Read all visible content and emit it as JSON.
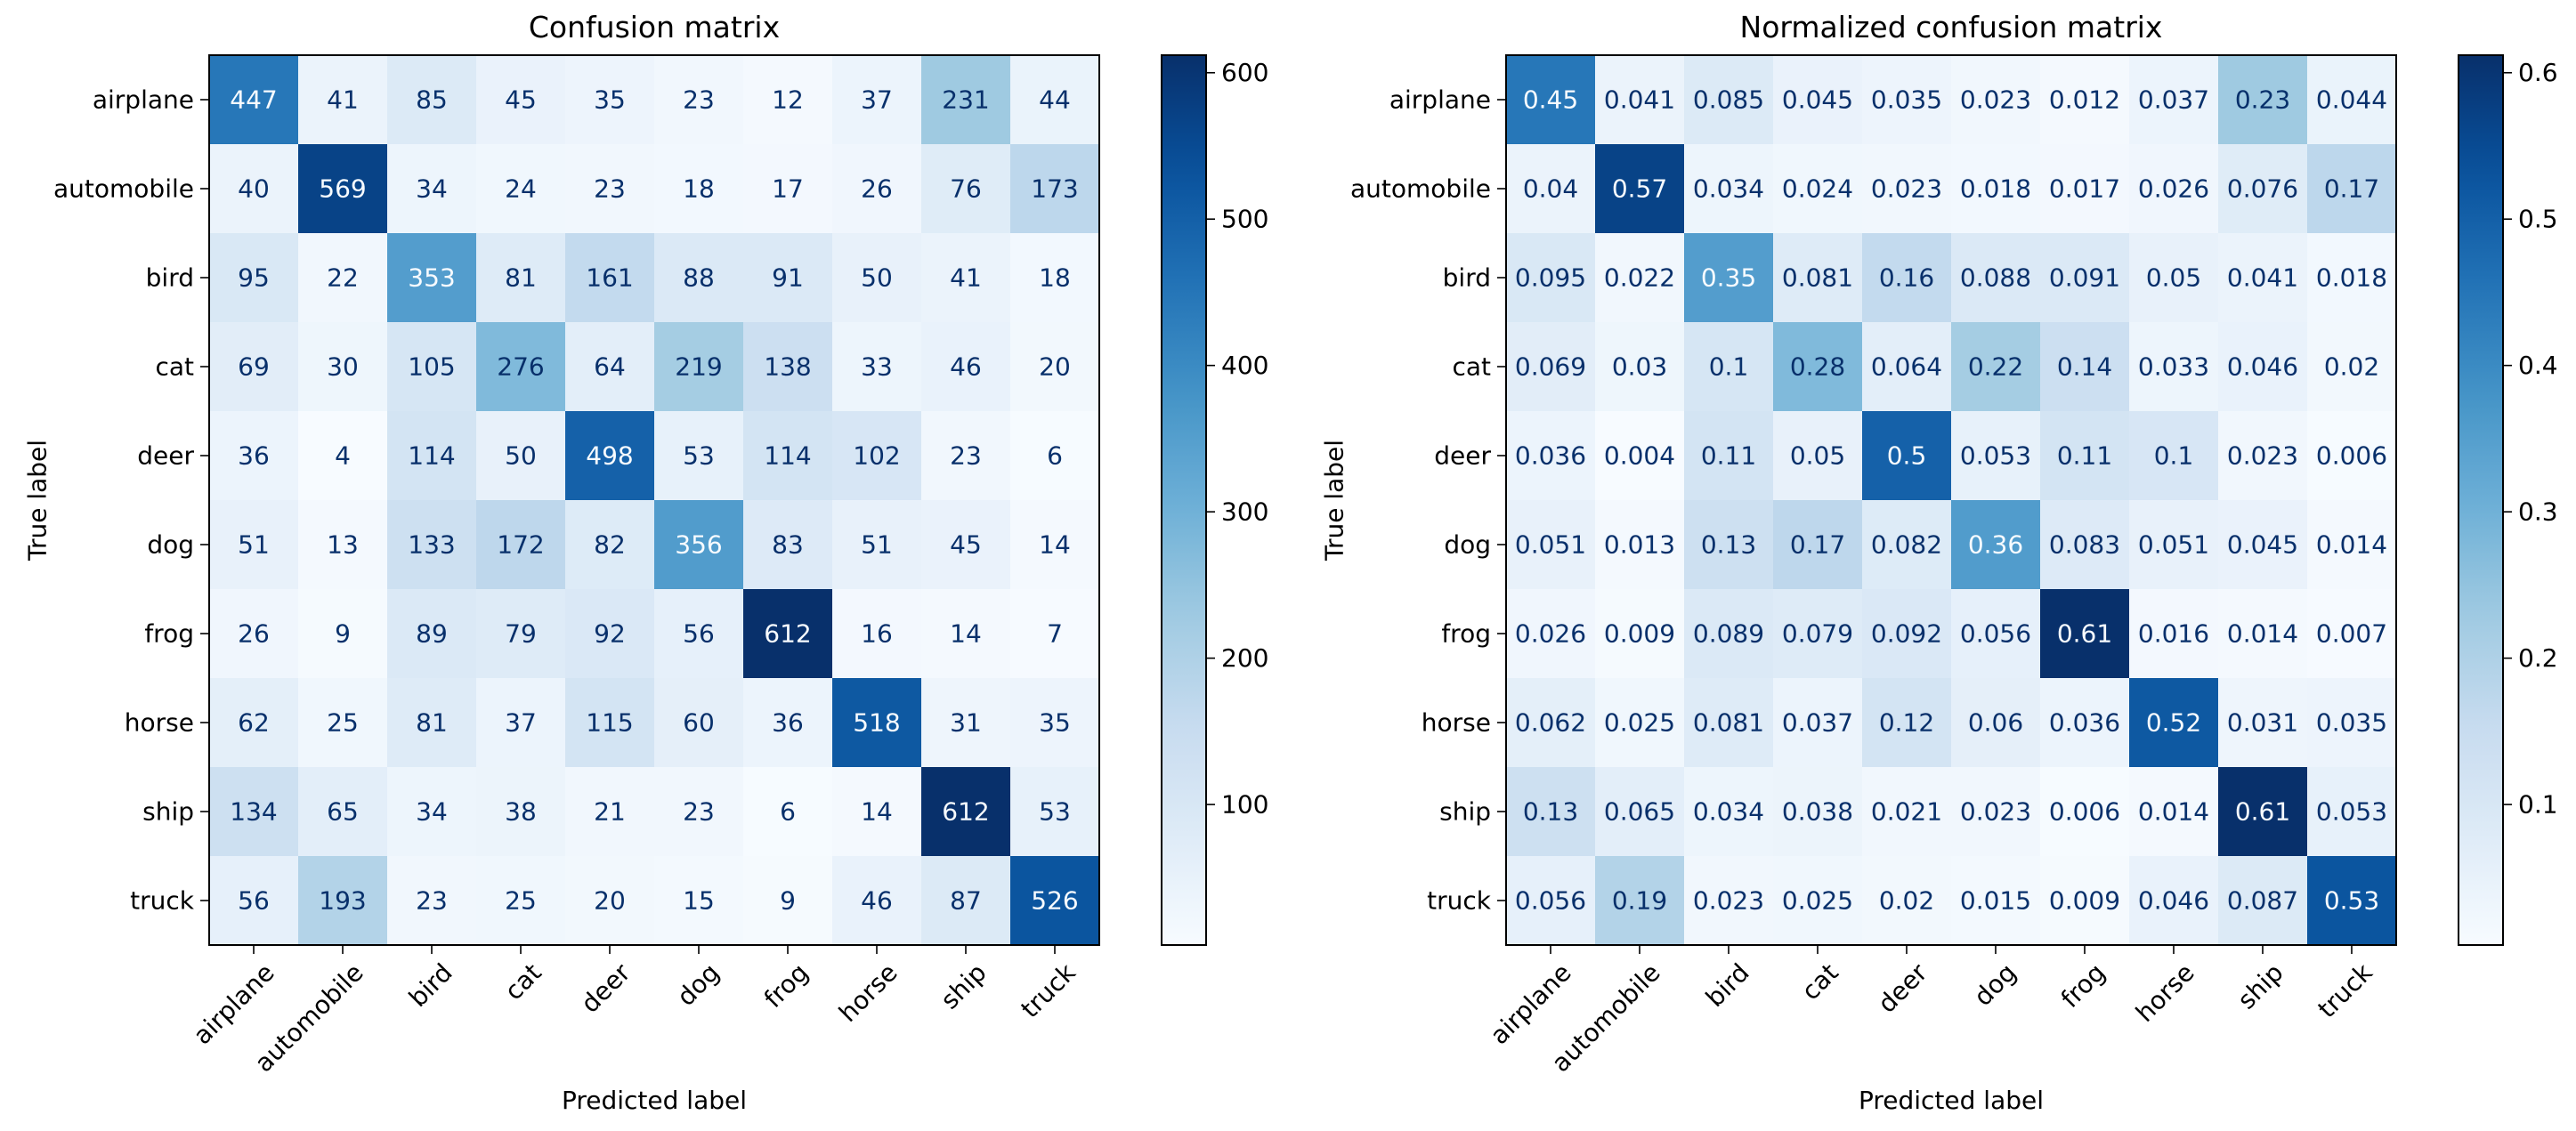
{
  "chart_data": [
    {
      "type": "heatmap",
      "title": "Confusion matrix",
      "xlabel": "Predicted label",
      "ylabel": "True label",
      "x_categories": [
        "airplane",
        "automobile",
        "bird",
        "cat",
        "deer",
        "dog",
        "frog",
        "horse",
        "ship",
        "truck"
      ],
      "y_categories": [
        "airplane",
        "automobile",
        "bird",
        "cat",
        "deer",
        "dog",
        "frog",
        "horse",
        "ship",
        "truck"
      ],
      "values": [
        [
          447,
          41,
          85,
          45,
          35,
          23,
          12,
          37,
          231,
          44
        ],
        [
          40,
          569,
          34,
          24,
          23,
          18,
          17,
          26,
          76,
          173
        ],
        [
          95,
          22,
          353,
          81,
          161,
          88,
          91,
          50,
          41,
          18
        ],
        [
          69,
          30,
          105,
          276,
          64,
          219,
          138,
          33,
          46,
          20
        ],
        [
          36,
          4,
          114,
          50,
          498,
          53,
          114,
          102,
          23,
          6
        ],
        [
          51,
          13,
          133,
          172,
          82,
          356,
          83,
          51,
          45,
          14
        ],
        [
          26,
          9,
          89,
          79,
          92,
          56,
          612,
          16,
          14,
          7
        ],
        [
          62,
          25,
          81,
          37,
          115,
          60,
          36,
          518,
          31,
          35
        ],
        [
          134,
          65,
          34,
          38,
          21,
          23,
          6,
          14,
          612,
          53
        ],
        [
          56,
          193,
          23,
          25,
          20,
          15,
          9,
          46,
          87,
          526
        ]
      ],
      "value_labels": [
        [
          "447",
          "41",
          "85",
          "45",
          "35",
          "23",
          "12",
          "37",
          "231",
          "44"
        ],
        [
          "40",
          "569",
          "34",
          "24",
          "23",
          "18",
          "17",
          "26",
          "76",
          "173"
        ],
        [
          "95",
          "22",
          "353",
          "81",
          "161",
          "88",
          "91",
          "50",
          "41",
          "18"
        ],
        [
          "69",
          "30",
          "105",
          "276",
          "64",
          "219",
          "138",
          "33",
          "46",
          "20"
        ],
        [
          "36",
          "4",
          "114",
          "50",
          "498",
          "53",
          "114",
          "102",
          "23",
          "6"
        ],
        [
          "51",
          "13",
          "133",
          "172",
          "82",
          "356",
          "83",
          "51",
          "45",
          "14"
        ],
        [
          "26",
          "9",
          "89",
          "79",
          "92",
          "56",
          "612",
          "16",
          "14",
          "7"
        ],
        [
          "62",
          "25",
          "81",
          "37",
          "115",
          "60",
          "36",
          "518",
          "31",
          "35"
        ],
        [
          "134",
          "65",
          "34",
          "38",
          "21",
          "23",
          "6",
          "14",
          "612",
          "53"
        ],
        [
          "56",
          "193",
          "23",
          "25",
          "20",
          "15",
          "9",
          "46",
          "87",
          "526"
        ]
      ],
      "colormap": "Blues",
      "color_range": [
        4,
        612
      ],
      "colorbar_ticks": [
        100,
        200,
        300,
        400,
        500,
        600
      ],
      "colorbar_tick_labels": [
        "100",
        "200",
        "300",
        "400",
        "500",
        "600"
      ]
    },
    {
      "type": "heatmap",
      "title": "Normalized confusion matrix",
      "xlabel": "Predicted label",
      "ylabel": "True label",
      "x_categories": [
        "airplane",
        "automobile",
        "bird",
        "cat",
        "deer",
        "dog",
        "frog",
        "horse",
        "ship",
        "truck"
      ],
      "y_categories": [
        "airplane",
        "automobile",
        "bird",
        "cat",
        "deer",
        "dog",
        "frog",
        "horse",
        "ship",
        "truck"
      ],
      "values": [
        [
          0.447,
          0.041,
          0.085,
          0.045,
          0.035,
          0.023,
          0.012,
          0.037,
          0.231,
          0.044
        ],
        [
          0.04,
          0.569,
          0.034,
          0.024,
          0.023,
          0.018,
          0.017,
          0.026,
          0.076,
          0.173
        ],
        [
          0.095,
          0.022,
          0.353,
          0.081,
          0.161,
          0.088,
          0.091,
          0.05,
          0.041,
          0.018
        ],
        [
          0.069,
          0.03,
          0.105,
          0.276,
          0.064,
          0.219,
          0.138,
          0.033,
          0.046,
          0.02
        ],
        [
          0.036,
          0.004,
          0.114,
          0.05,
          0.498,
          0.053,
          0.114,
          0.102,
          0.023,
          0.006
        ],
        [
          0.051,
          0.013,
          0.133,
          0.172,
          0.082,
          0.356,
          0.083,
          0.051,
          0.045,
          0.014
        ],
        [
          0.026,
          0.009,
          0.089,
          0.079,
          0.092,
          0.056,
          0.612,
          0.016,
          0.014,
          0.007
        ],
        [
          0.062,
          0.025,
          0.081,
          0.037,
          0.115,
          0.06,
          0.036,
          0.518,
          0.031,
          0.035
        ],
        [
          0.134,
          0.065,
          0.034,
          0.038,
          0.021,
          0.023,
          0.006,
          0.014,
          0.612,
          0.053
        ],
        [
          0.056,
          0.193,
          0.023,
          0.025,
          0.02,
          0.015,
          0.009,
          0.046,
          0.087,
          0.526
        ]
      ],
      "value_labels": [
        [
          "0.45",
          "0.041",
          "0.085",
          "0.045",
          "0.035",
          "0.023",
          "0.012",
          "0.037",
          "0.23",
          "0.044"
        ],
        [
          "0.04",
          "0.57",
          "0.034",
          "0.024",
          "0.023",
          "0.018",
          "0.017",
          "0.026",
          "0.076",
          "0.17"
        ],
        [
          "0.095",
          "0.022",
          "0.35",
          "0.081",
          "0.16",
          "0.088",
          "0.091",
          "0.05",
          "0.041",
          "0.018"
        ],
        [
          "0.069",
          "0.03",
          "0.1",
          "0.28",
          "0.064",
          "0.22",
          "0.14",
          "0.033",
          "0.046",
          "0.02"
        ],
        [
          "0.036",
          "0.004",
          "0.11",
          "0.05",
          "0.5",
          "0.053",
          "0.11",
          "0.1",
          "0.023",
          "0.006"
        ],
        [
          "0.051",
          "0.013",
          "0.13",
          "0.17",
          "0.082",
          "0.36",
          "0.083",
          "0.051",
          "0.045",
          "0.014"
        ],
        [
          "0.026",
          "0.009",
          "0.089",
          "0.079",
          "0.092",
          "0.056",
          "0.61",
          "0.016",
          "0.014",
          "0.007"
        ],
        [
          "0.062",
          "0.025",
          "0.081",
          "0.037",
          "0.12",
          "0.06",
          "0.036",
          "0.52",
          "0.031",
          "0.035"
        ],
        [
          "0.13",
          "0.065",
          "0.034",
          "0.038",
          "0.021",
          "0.023",
          "0.006",
          "0.014",
          "0.61",
          "0.053"
        ],
        [
          "0.056",
          "0.19",
          "0.023",
          "0.025",
          "0.02",
          "0.015",
          "0.009",
          "0.046",
          "0.087",
          "0.53"
        ]
      ],
      "colormap": "Blues",
      "color_range": [
        0.004,
        0.612
      ],
      "colorbar_ticks": [
        0.1,
        0.2,
        0.3,
        0.4,
        0.5,
        0.6
      ],
      "colorbar_tick_labels": [
        "0.1",
        "0.2",
        "0.3",
        "0.4",
        "0.5",
        "0.6"
      ]
    }
  ]
}
